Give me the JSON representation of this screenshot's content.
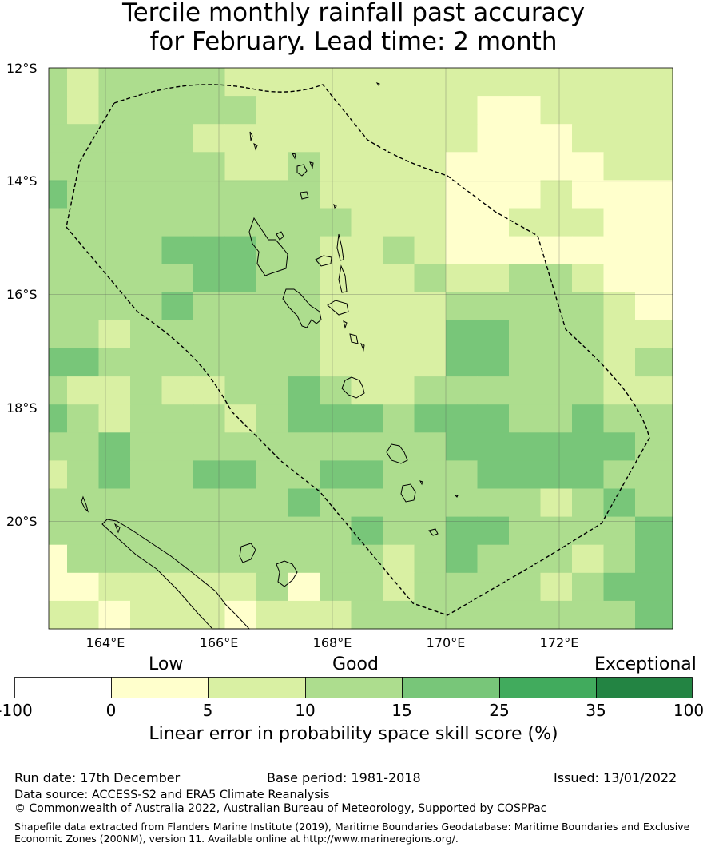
{
  "title_line1": "Tercile monthly rainfall past accuracy",
  "title_line2": "for February. Lead time: 2 month",
  "lat_ticks": [
    "12°S",
    "14°S",
    "16°S",
    "18°S",
    "20°S"
  ],
  "lon_ticks": [
    "164°E",
    "166°E",
    "168°E",
    "170°E",
    "172°E"
  ],
  "categories": {
    "low": "Low",
    "good": "Good",
    "exceptional": "Exceptional"
  },
  "colorbar": {
    "tick_labels": [
      "-100",
      "0",
      "5",
      "10",
      "15",
      "25",
      "35",
      "100"
    ],
    "colors": [
      "#ffffff",
      "#ffffcc",
      "#d9f0a3",
      "#addd8e",
      "#78c679",
      "#41ab5d",
      "#238443"
    ],
    "label": "Linear error in probability space skill score (%)"
  },
  "footer": {
    "run_date": "Run date: 17th December",
    "base_period": "Base period: 1981-2018",
    "issued": "Issued: 13/01/2022",
    "data_source": "Data source: ACCESS-S2 and ERA5 Climate Reanalysis",
    "copyright": "© Commonwealth of Australia 2022, Australian Bureau of Meteorology, Supported by COSPPac",
    "shapefile": "Shapefile data extracted from Flanders Marine Institute (2019), Maritime Boundaries Geodatabase: Maritime Boundaries and Exclusive Economic Zones (200NM), version 11. Available online at http://www.marineregions.org/."
  },
  "map_data": {
    "lon_range": [
      163,
      174
    ],
    "lat_range": [
      -21.9,
      -12
    ],
    "skill_category_grid_note": "rows = latitude bands from north to south, columns = longitude bands from west to east; values index colorbar.colors",
    "grid": [
      [
        3,
        2,
        3,
        3,
        3,
        3,
        2,
        2,
        2,
        2,
        2,
        2,
        2,
        2,
        2,
        2,
        2,
        2,
        2,
        2
      ],
      [
        3,
        2,
        3,
        3,
        3,
        3,
        3,
        2,
        2,
        2,
        2,
        2,
        2,
        2,
        1,
        1,
        2,
        2,
        2,
        2
      ],
      [
        3,
        3,
        3,
        3,
        3,
        2,
        2,
        2,
        2,
        2,
        2,
        2,
        2,
        2,
        1,
        1,
        1,
        2,
        2,
        2
      ],
      [
        3,
        3,
        3,
        3,
        3,
        3,
        2,
        2,
        3,
        2,
        2,
        2,
        2,
        1,
        1,
        1,
        1,
        1,
        2,
        2
      ],
      [
        4,
        3,
        3,
        3,
        3,
        3,
        3,
        3,
        3,
        2,
        2,
        2,
        2,
        1,
        1,
        1,
        2,
        1,
        1,
        1
      ],
      [
        3,
        3,
        3,
        3,
        3,
        3,
        3,
        3,
        3,
        3,
        2,
        2,
        2,
        1,
        1,
        2,
        2,
        2,
        1,
        1
      ],
      [
        3,
        3,
        3,
        3,
        4,
        4,
        4,
        3,
        3,
        2,
        2,
        3,
        2,
        1,
        1,
        1,
        1,
        1,
        1,
        1
      ],
      [
        3,
        3,
        3,
        3,
        3,
        4,
        4,
        3,
        3,
        2,
        2,
        2,
        3,
        2,
        2,
        3,
        3,
        2,
        1,
        1
      ],
      [
        3,
        3,
        3,
        3,
        4,
        3,
        3,
        3,
        3,
        2,
        2,
        2,
        2,
        3,
        3,
        3,
        3,
        3,
        2,
        1
      ],
      [
        3,
        3,
        2,
        3,
        3,
        3,
        3,
        3,
        3,
        2,
        2,
        2,
        2,
        4,
        4,
        3,
        3,
        3,
        2,
        2
      ],
      [
        4,
        4,
        3,
        3,
        3,
        3,
        3,
        3,
        3,
        2,
        2,
        2,
        2,
        4,
        4,
        3,
        3,
        3,
        2,
        3
      ],
      [
        3,
        2,
        2,
        3,
        2,
        2,
        3,
        3,
        4,
        3,
        2,
        2,
        3,
        3,
        3,
        3,
        3,
        3,
        2,
        2
      ],
      [
        4,
        3,
        2,
        3,
        3,
        3,
        2,
        3,
        4,
        4,
        4,
        3,
        4,
        4,
        4,
        3,
        3,
        4,
        3,
        3
      ],
      [
        3,
        3,
        4,
        3,
        3,
        3,
        3,
        3,
        3,
        3,
        3,
        3,
        3,
        4,
        4,
        4,
        4,
        4,
        4,
        3
      ],
      [
        2,
        3,
        4,
        3,
        3,
        4,
        4,
        3,
        3,
        4,
        4,
        3,
        3,
        3,
        4,
        4,
        4,
        4,
        3,
        3
      ],
      [
        3,
        3,
        3,
        3,
        3,
        3,
        3,
        3,
        4,
        3,
        3,
        3,
        3,
        3,
        3,
        3,
        2,
        3,
        4,
        3
      ],
      [
        3,
        3,
        3,
        3,
        3,
        3,
        3,
        3,
        3,
        3,
        4,
        3,
        3,
        4,
        4,
        3,
        3,
        3,
        3,
        4
      ],
      [
        1,
        3,
        3,
        3,
        3,
        3,
        3,
        3,
        3,
        3,
        3,
        2,
        3,
        4,
        3,
        3,
        3,
        2,
        3,
        4
      ],
      [
        1,
        1,
        2,
        2,
        2,
        2,
        2,
        3,
        1,
        3,
        3,
        2,
        3,
        3,
        3,
        3,
        2,
        3,
        4,
        4
      ],
      [
        2,
        2,
        1,
        2,
        2,
        2,
        1,
        2,
        2,
        2,
        3,
        3,
        3,
        3,
        3,
        3,
        3,
        3,
        3,
        4
      ]
    ]
  }
}
